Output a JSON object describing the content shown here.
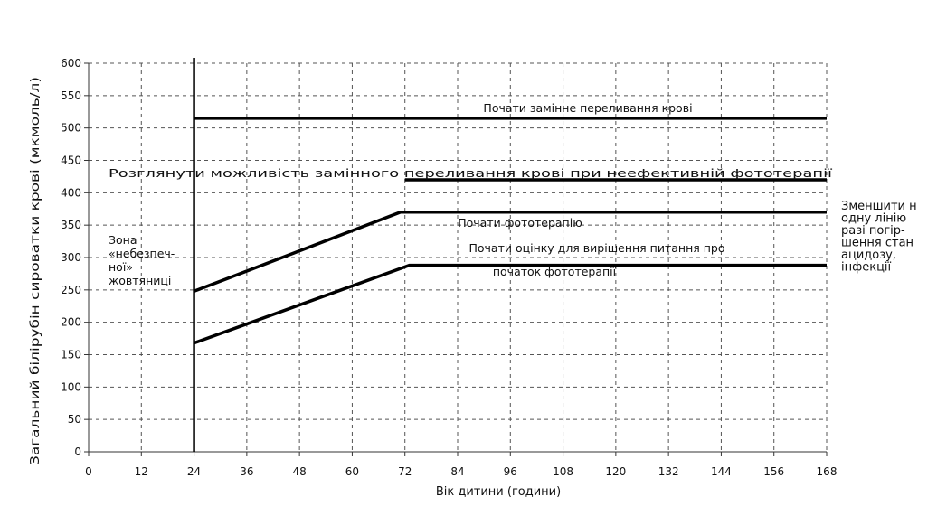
{
  "chart_data": {
    "type": "line",
    "xlabel": "Вік дитини (години)",
    "ylabel": "Загальний білірубін сироватки крові (мкмоль/л)",
    "xlim": [
      0,
      168
    ],
    "ylim": [
      0,
      600
    ],
    "xticks": [
      0,
      12,
      24,
      36,
      48,
      60,
      72,
      84,
      96,
      108,
      120,
      132,
      144,
      156,
      168
    ],
    "yticks": [
      0,
      50,
      100,
      150,
      200,
      250,
      300,
      350,
      400,
      450,
      500,
      550,
      600
    ],
    "grid": "dashed",
    "reference_line_x": 24,
    "series": [
      {
        "x": [
          24,
          168
        ],
        "y": [
          515,
          515
        ]
      },
      {
        "x": [
          72,
          168
        ],
        "y": [
          420,
          420
        ]
      },
      {
        "x": [
          24,
          71,
          168
        ],
        "y": [
          248,
          370,
          370
        ]
      },
      {
        "x": [
          24,
          73,
          168
        ],
        "y": [
          168,
          288,
          288
        ]
      }
    ],
    "annotations": [
      {
        "id": "exchange",
        "text": "Почати замінне переливання крові"
      },
      {
        "id": "consider",
        "text": "Розглянути можливість замінного переливання крові при неефективній  фототерапії"
      },
      {
        "id": "photo",
        "text": "Почати фототерапію"
      },
      {
        "id": "assess_1",
        "text": "Почати оцінку для вирішення питання про"
      },
      {
        "id": "assess_2",
        "text": "початок фототерапії"
      }
    ],
    "zone_label": [
      "Зона",
      "«небезпеч-",
      "ної»",
      "жовтяниці"
    ],
    "side_note": [
      "Зменшити н",
      " одну лінію",
      "разі погір-",
      "шення стан",
      "ацидозу,",
      "інфекції"
    ]
  }
}
